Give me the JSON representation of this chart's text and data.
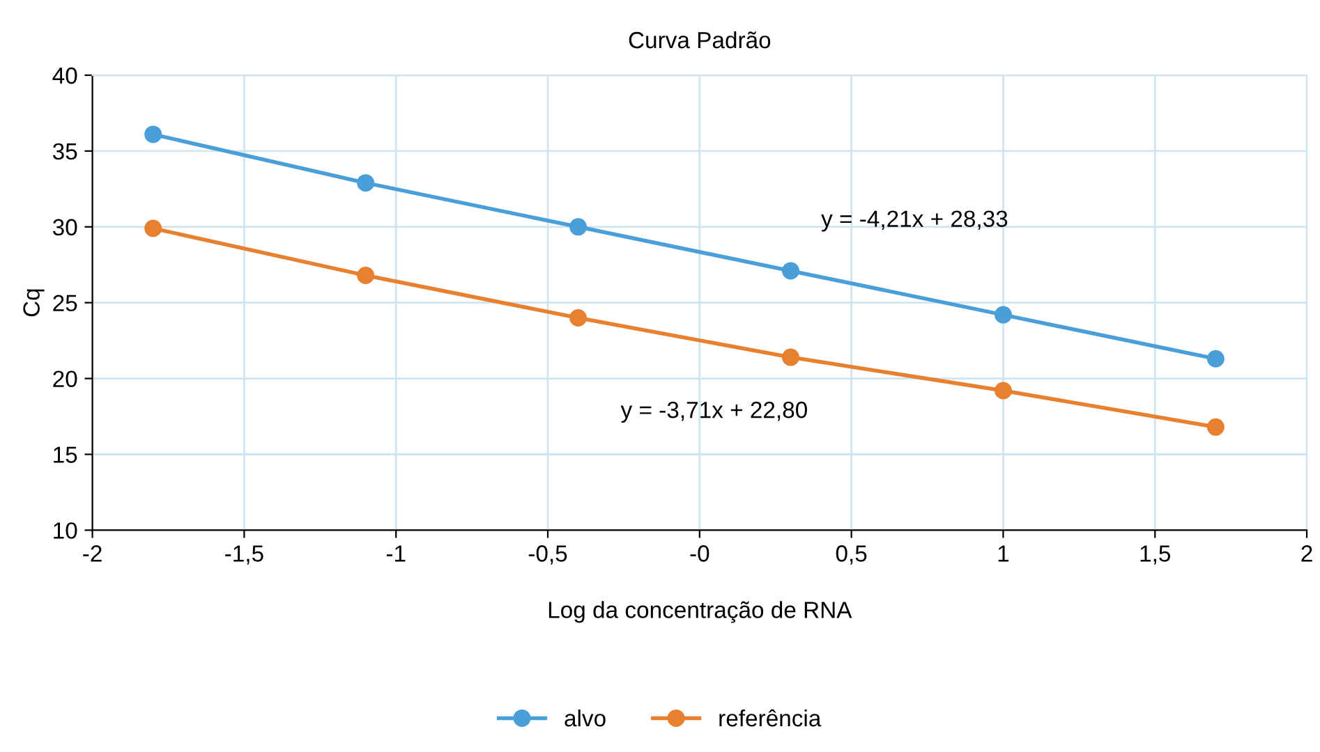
{
  "chart_data": {
    "type": "line",
    "title": "Curva Padrão",
    "xlabel": "Log da concentração de RNA",
    "ylabel": "Cq",
    "x": [
      -1.8,
      -1.1,
      -0.4,
      0.3,
      1.0,
      1.7
    ],
    "series": [
      {
        "name": "alvo",
        "color": "#4a9fd8",
        "values": [
          36.1,
          32.9,
          30.0,
          27.1,
          24.2,
          21.3
        ]
      },
      {
        "name": "referência",
        "color": "#e8812f",
        "values": [
          29.9,
          26.8,
          24.0,
          21.4,
          19.2,
          16.8
        ]
      }
    ],
    "xlim": [
      -2,
      2
    ],
    "xticks": [
      -2,
      {
        "value": -1.5,
        "label": "-1,5"
      },
      -1,
      {
        "value": -0.5,
        "label": "-0,5"
      },
      {
        "value": 0,
        "label": "-0"
      },
      {
        "value": 0.5,
        "label": "0,5"
      },
      1,
      {
        "value": 1.5,
        "label": "1,5"
      },
      2
    ],
    "ylim": [
      10,
      40
    ],
    "yticks": [
      10,
      15,
      20,
      25,
      30,
      35,
      40
    ],
    "annotations": [
      "y = -4,21x + 28,33",
      "y = -3,71x + 22,80"
    ],
    "grid": true,
    "legend": "bottom",
    "marker": "circle",
    "line_style": "solid"
  }
}
